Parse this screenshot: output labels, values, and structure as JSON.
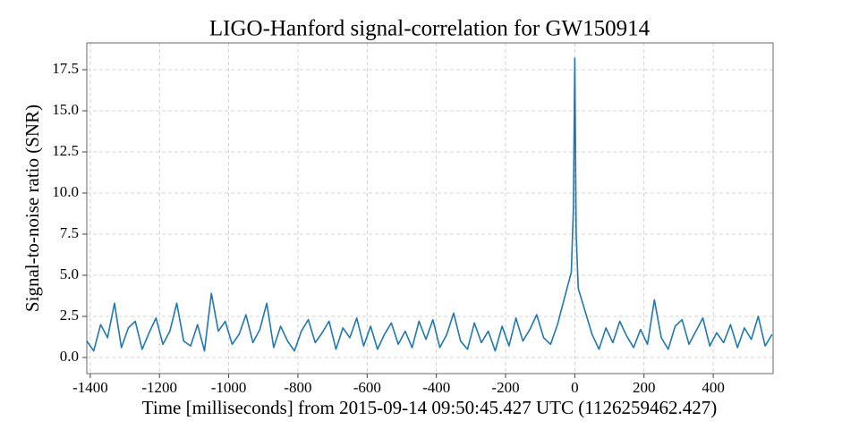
{
  "chart_data": {
    "type": "line",
    "title": "LIGO-Hanford signal-correlation for GW150914",
    "x_label": "Time [milliseconds] from 2015-09-14 09:50:45.427 UTC (1126259462.427)",
    "y_label": "Signal-to-noise ratio (SNR)",
    "x": [
      -1410,
      -1390,
      -1370,
      -1350,
      -1330,
      -1310,
      -1290,
      -1270,
      -1250,
      -1230,
      -1210,
      -1190,
      -1170,
      -1150,
      -1130,
      -1110,
      -1090,
      -1070,
      -1050,
      -1030,
      -1010,
      -990,
      -970,
      -950,
      -930,
      -910,
      -890,
      -870,
      -850,
      -830,
      -810,
      -790,
      -770,
      -750,
      -730,
      -710,
      -690,
      -670,
      -650,
      -630,
      -610,
      -590,
      -570,
      -550,
      -530,
      -510,
      -490,
      -470,
      -450,
      -430,
      -410,
      -390,
      -370,
      -350,
      -330,
      -310,
      -290,
      -270,
      -250,
      -230,
      -210,
      -190,
      -170,
      -150,
      -130,
      -110,
      -90,
      -70,
      -50,
      -30,
      -10,
      -4,
      0,
      4,
      10,
      30,
      50,
      70,
      90,
      110,
      130,
      150,
      170,
      190,
      210,
      230,
      250,
      270,
      290,
      310,
      330,
      350,
      370,
      390,
      410,
      430,
      450,
      470,
      490,
      510,
      530,
      550,
      570
    ],
    "series": [
      {
        "name": "SNR",
        "color": "#1f77b4",
        "values": [
          1.0,
          0.4,
          2.0,
          1.2,
          3.3,
          0.6,
          1.8,
          2.2,
          0.5,
          1.5,
          2.4,
          0.8,
          1.6,
          3.3,
          1.0,
          0.7,
          2.0,
          0.4,
          3.9,
          1.6,
          2.2,
          0.8,
          1.4,
          2.6,
          0.9,
          1.7,
          3.3,
          0.6,
          1.9,
          1.0,
          0.4,
          1.6,
          2.3,
          0.9,
          1.5,
          2.2,
          0.5,
          1.8,
          1.2,
          2.4,
          0.7,
          1.9,
          0.5,
          1.4,
          2.1,
          0.8,
          1.6,
          0.6,
          2.2,
          1.1,
          2.3,
          0.6,
          1.4,
          2.7,
          1.0,
          0.5,
          2.1,
          0.9,
          1.6,
          0.4,
          1.9,
          0.7,
          2.4,
          1.0,
          1.7,
          2.6,
          1.2,
          0.8,
          2.0,
          3.6,
          5.2,
          9.0,
          18.2,
          7.5,
          4.2,
          2.8,
          1.4,
          0.5,
          1.8,
          0.9,
          2.2,
          1.3,
          0.6,
          1.7,
          0.8,
          3.5,
          1.2,
          0.5,
          1.9,
          2.3,
          0.8,
          1.6,
          2.4,
          0.7,
          1.5,
          0.9,
          2.0,
          0.6,
          1.8,
          1.1,
          2.5,
          0.7,
          1.4
        ]
      }
    ],
    "xlim": [
      -1410,
      573
    ],
    "ylim": [
      -0.98,
      19.13
    ],
    "xticks": [
      -1400,
      -1200,
      -1000,
      -800,
      -600,
      -400,
      -200,
      0,
      200,
      400
    ],
    "yticks": [
      {
        "value": 0,
        "label": "0.0"
      },
      2.5,
      {
        "value": 5,
        "label": "5.0"
      },
      7.5,
      {
        "value": 10,
        "label": "10.0"
      },
      12.5,
      {
        "value": 15,
        "label": "15.0"
      },
      17.5
    ],
    "grid": true
  }
}
